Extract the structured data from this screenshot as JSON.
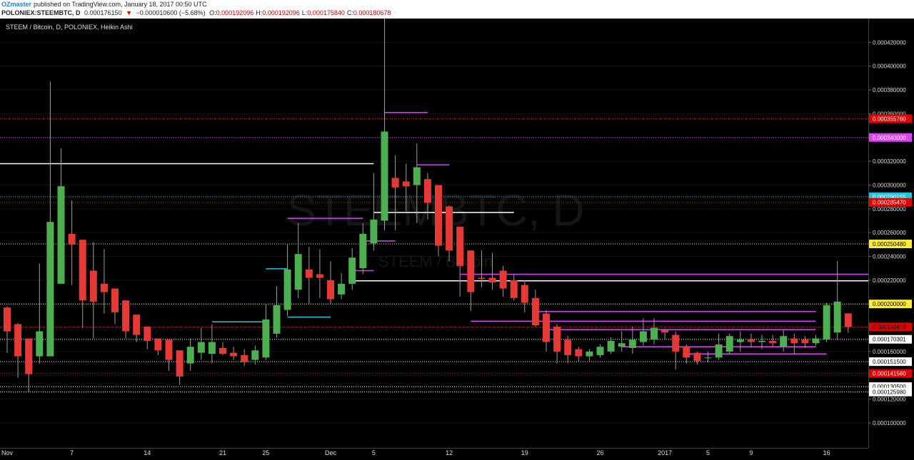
{
  "header": {
    "author": "OZmaster",
    "published": "published on TradingView.com, January 18, 2017 00:50 UTC",
    "symbol": "POLONIEX:STEEMBTC, D",
    "price": "0.000176150",
    "change_arrow": "▼",
    "change": "−0.000010600 (−5.68%)",
    "ohlc": [
      {
        "label": "O:",
        "value": "0.000192096"
      },
      {
        "label": "H:",
        "value": "0.000192096"
      },
      {
        "label": "L:",
        "value": "0.000175840"
      },
      {
        "label": "C:",
        "value": "0.000180678"
      }
    ]
  },
  "chart_data": {
    "type": "candlestick",
    "title": "STEEM / Bitcoin, D, POLONIEX, Heikin Ashi",
    "watermark": [
      "STEEMBTC, D",
      "STEEM / Bitcoin"
    ],
    "colors": {
      "up": "#4caf50",
      "down": "#e53935",
      "wick": "#9e9e9e"
    },
    "categories": [
      "Nov",
      null,
      null,
      null,
      null,
      null,
      "7",
      null,
      null,
      null,
      null,
      null,
      null,
      "14",
      null,
      null,
      null,
      null,
      null,
      null,
      "21",
      null,
      null,
      null,
      "25",
      null,
      null,
      null,
      null,
      null,
      "Dec",
      null,
      null,
      null,
      "5",
      null,
      null,
      null,
      null,
      null,
      null,
      "12",
      null,
      null,
      null,
      null,
      null,
      null,
      "19",
      null,
      null,
      null,
      null,
      null,
      null,
      "26",
      null,
      null,
      null,
      null,
      null,
      "2017",
      null,
      null,
      null,
      "5",
      null,
      null,
      null,
      "9",
      null,
      null,
      null,
      null,
      null,
      null,
      "16",
      null,
      null
    ],
    "open": [
      0.000197,
      0.000183,
      0.000171,
      0.000156,
      0.000156,
      0.000217,
      0.000259,
      0.000254,
      0.000228,
      0.000217,
      0.000213,
      0.000203,
      0.000191,
      0.000181,
      0.000171,
      0.00017,
      0.000161,
      0.00015,
      0.000159,
      0.000158,
      0.000163,
      0.000159,
      0.000157,
      0.000153,
      0.000155,
      0.000175,
      0.000195,
      0.000212,
      0.000229,
      0.000225,
      0.00022,
      0.000208,
      0.000217,
      0.00023,
      0.000251,
      0.00027,
      0.000306,
      0.000303,
      0.0003,
      0.000305,
      0.0003,
      0.000282,
      0.000265,
      0.000245,
      0.000222,
      0.000222,
      0.000228,
      0.00022,
      0.000216,
      0.000205,
      0.000192,
      0.000181,
      0.00017,
      0.000162,
      0.000156,
      0.000157,
      0.00016,
      0.000164,
      0.000163,
      0.000168,
      0.00017,
      0.000178,
      0.000174,
      0.000164,
      0.000159,
      0.000155,
      0.000155,
      0.00016,
      0.000168,
      0.00017,
      0.000168,
      0.000169,
      0.000164,
      0.000171,
      0.00017,
      0.000167,
      0.00017,
      0.000176,
      0.000192096
    ],
    "high": [
      0.000198,
      0.000184,
      0.000171,
      0.000234,
      0.000387,
      0.000331,
      0.000287,
      0.000254,
      0.000252,
      0.000246,
      0.000213,
      0.000203,
      0.000191,
      0.000181,
      0.000171,
      0.00017,
      0.000161,
      0.000171,
      0.00018,
      0.000183,
      0.000168,
      0.000164,
      0.000162,
      0.000165,
      0.0002,
      0.000215,
      0.00025,
      0.000268,
      0.000248,
      0.000246,
      0.000236,
      0.000226,
      0.000247,
      0.000268,
      0.00031,
      0.00044,
      0.000325,
      0.000318,
      0.000335,
      0.00031,
      0.0003,
      0.000283,
      0.000265,
      0.000245,
      0.000245,
      0.000243,
      0.000232,
      0.000225,
      0.00022,
      0.000212,
      0.000195,
      0.000183,
      0.000173,
      0.000164,
      0.000162,
      0.000166,
      0.000172,
      0.000177,
      0.000181,
      0.000188,
      0.000188,
      0.000179,
      0.000177,
      0.000166,
      0.00016,
      0.00016,
      0.000175,
      0.000175,
      0.000177,
      0.000175,
      0.000174,
      0.000174,
      0.000178,
      0.000175,
      0.000173,
      0.000174,
      0.000201,
      0.000236,
      0.000192096
    ],
    "low": [
      0.000159,
      0.000138,
      0.000126,
      0.00015,
      0.000156,
      0.000217,
      0.000216,
      0.00018,
      0.000171,
      0.000192,
      0.000183,
      0.000171,
      0.000168,
      0.000162,
      0.000157,
      0.000144,
      0.000132,
      0.000144,
      0.000153,
      0.00015,
      0.000157,
      0.000153,
      0.000148,
      0.000149,
      0.000153,
      0.000172,
      0.00019,
      0.000205,
      0.0002,
      0.000205,
      0.0002,
      0.000204,
      0.000212,
      0.000225,
      0.000245,
      0.000262,
      0.000262,
      0.000278,
      0.000268,
      0.000271,
      0.00024,
      0.000236,
      0.000206,
      0.000194,
      0.000214,
      0.000212,
      0.000206,
      0.000203,
      0.000193,
      0.000181,
      0.00016,
      0.00015,
      0.00015,
      0.000152,
      0.000152,
      0.000155,
      0.000158,
      0.00016,
      0.000158,
      0.000165,
      0.000166,
      0.00017,
      0.000145,
      0.00015,
      0.000149,
      0.000151,
      0.000153,
      0.000158,
      0.00016,
      0.000164,
      0.000162,
      0.000164,
      0.00016,
      0.000158,
      0.000163,
      0.000165,
      0.000168,
      0.00017,
      0.00017584
    ],
    "close": [
      0.000177,
      0.000156,
      0.000141,
      0.000177,
      0.000269,
      0.000299,
      0.00025,
      0.000203,
      0.000202,
      0.00021,
      0.000193,
      0.000177,
      0.000174,
      0.000169,
      0.000161,
      0.000153,
      0.000139,
      0.000164,
      0.000168,
      0.000168,
      0.000158,
      0.000156,
      0.000151,
      0.000161,
      0.000187,
      0.000199,
      0.000229,
      0.000242,
      0.000222,
      0.000222,
      0.000204,
      0.000217,
      0.000239,
      0.000259,
      0.000271,
      0.000345,
      0.000298,
      0.000299,
      0.000315,
      0.000285,
      0.000249,
      0.000245,
      0.000232,
      0.00021,
      0.000221,
      0.000218,
      0.000213,
      0.000205,
      0.000201,
      0.000182,
      0.000168,
      0.00016,
      0.000157,
      0.000156,
      0.00016,
      0.000164,
      0.000169,
      0.000167,
      0.00017,
      0.000177,
      0.00018,
      0.000176,
      0.00016,
      0.000155,
      0.000152,
      0.000155,
      0.000166,
      0.000173,
      0.00017,
      0.000168,
      0.000169,
      0.000167,
      0.000173,
      0.000167,
      0.000167,
      0.000171,
      0.000199,
      0.000202,
      0.000180678
    ],
    "ylim": [
      7.9e-05,
      0.00044
    ],
    "yticks": [
      {
        "value": 0.0001,
        "label": "0.000100000"
      },
      {
        "value": 0.00012,
        "label": "0.000120000"
      },
      {
        "value": 0.00014,
        "label": "0.000140000"
      },
      {
        "value": 0.00016,
        "label": "0.000160000"
      },
      {
        "value": 0.00018,
        "label": "0.000180000"
      },
      {
        "value": 0.0002,
        "label": "0.000200000"
      },
      {
        "value": 0.00022,
        "label": "0.000220000"
      },
      {
        "value": 0.00024,
        "label": "0.000240000"
      },
      {
        "value": 0.00026,
        "label": "0.000260000"
      },
      {
        "value": 0.00028,
        "label": "0.000280000"
      },
      {
        "value": 0.0003,
        "label": "0.000300000"
      },
      {
        "value": 0.00032,
        "label": "0.000320000"
      },
      {
        "value": 0.00034,
        "label": "0.000340000"
      },
      {
        "value": 0.00036,
        "label": "0.000360000"
      },
      {
        "value": 0.00038,
        "label": "0.000380000"
      },
      {
        "value": 0.0004,
        "label": "0.000400000"
      },
      {
        "value": 0.00042,
        "label": "0.000420000"
      }
    ],
    "grid": true,
    "levels": [
      {
        "value": 0.00035576,
        "label": "0.000355760",
        "color": "#e00000",
        "text_color": "#ffffff"
      },
      {
        "value": 0.00034,
        "label": "0.000340000",
        "color": "#e040fb",
        "text_color": "#ffffff"
      },
      {
        "value": 0.000290155,
        "label": "0.000290155",
        "color": "#26c6da",
        "text_color": "#ffffff"
      },
      {
        "value": 0.00028547,
        "label": "0.000285470",
        "color": "#e00000",
        "text_color": "#ffffff"
      },
      {
        "value": 0.00025048,
        "label": "0.000250480",
        "color": "#ffeb3b",
        "text_color": "#000000"
      },
      {
        "value": 0.0002,
        "label": "0.000200000",
        "color": "#ffeb3b",
        "text_color": "#000000"
      },
      {
        "value": 0.000180678,
        "label": "0.000180678",
        "color": "#e00000",
        "text_color": "#000000"
      },
      {
        "value": 0.000170301,
        "label": "0.000170301",
        "color": "#ffffff",
        "text_color": "#000000"
      },
      {
        "value": 0.0001515,
        "label": "0.000151500",
        "color": "#ffffff",
        "text_color": "#000000"
      },
      {
        "value": 0.00014156,
        "label": "0.000141560",
        "color": "#e00000",
        "text_color": "#ffffff"
      },
      {
        "value": 0.0001305,
        "label": "0.000130500",
        "color": "#ffffff",
        "text_color": "#000000"
      },
      {
        "value": 0.00012598,
        "label": "0.000125980",
        "color": "#ffffff",
        "text_color": "#000000"
      }
    ],
    "drawings": [
      {
        "price": 0.000318,
        "x0": -1,
        "x1": 34,
        "color": "#ffffff"
      },
      {
        "price": 0.000277,
        "x0": 34,
        "x1": 47,
        "color": "#ffffff"
      },
      {
        "price": 0.0002195,
        "x0": 32,
        "x1": 81,
        "color": "#ffffff"
      },
      {
        "price": 0.000361,
        "x0": 35,
        "x1": 39,
        "color": "#e040fb"
      },
      {
        "price": 0.000317,
        "x0": 38,
        "x1": 41,
        "color": "#e040fb"
      },
      {
        "price": 0.000272,
        "x0": 26,
        "x1": 33,
        "color": "#e040fb"
      },
      {
        "price": 0.000253,
        "x0": 33,
        "x1": 36,
        "color": "#e040fb"
      },
      {
        "price": 0.000228,
        "x0": 32,
        "x1": 34,
        "color": "#e040fb"
      },
      {
        "price": 0.000225,
        "x0": 42,
        "x1": 81,
        "color": "#e040fb"
      },
      {
        "price": 0.0002296,
        "x0": 24,
        "x1": 26,
        "color": "#26c6da"
      },
      {
        "price": 0.000189,
        "x0": 26,
        "x1": 30,
        "color": "#26c6da"
      },
      {
        "price": 0.000185,
        "x0": 19,
        "x1": 24,
        "color": "#26c6da"
      },
      {
        "price": 0.0001936,
        "x0": 49,
        "x1": 75,
        "color": "#e040fb"
      },
      {
        "price": 0.0001855,
        "x0": 43,
        "x1": 75,
        "color": "#e040fb"
      },
      {
        "price": 0.0001785,
        "x0": 50,
        "x1": 75,
        "color": "#e040fb"
      },
      {
        "price": 0.000164,
        "x0": 57,
        "x1": 75,
        "color": "#e040fb"
      },
      {
        "price": 0.000158,
        "x0": 63,
        "x1": 76,
        "color": "#e040fb"
      }
    ]
  }
}
